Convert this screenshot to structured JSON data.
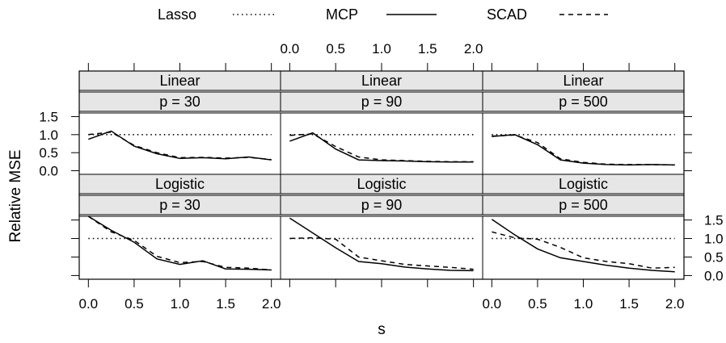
{
  "chart_data": {
    "type": "line",
    "layout": "lattice 3 columns x 2 rows",
    "xlabel": "s",
    "ylabel": "Relative MSE",
    "xlim": [
      -0.1,
      2.1
    ],
    "ylim": [
      -0.1,
      1.6
    ],
    "x_ticks": [
      "0.0",
      "0.5",
      "1.0",
      "1.5",
      "2.0"
    ],
    "y_ticks": [
      "0.0",
      "0.5",
      "1.0",
      "1.5"
    ],
    "legend": {
      "position": "top",
      "entries": [
        {
          "name": "Lasso",
          "style": "dotted"
        },
        {
          "name": "MCP",
          "style": "solid"
        },
        {
          "name": "SCAD",
          "style": "dashed"
        }
      ]
    },
    "panels": [
      {
        "strip": [
          "Linear",
          "p = 30"
        ],
        "x": [
          0,
          0.25,
          0.5,
          0.75,
          1.0,
          1.25,
          1.5,
          1.75,
          2.0
        ],
        "series": [
          {
            "name": "Lasso",
            "values": [
              1,
              1,
              1,
              1,
              1,
              1,
              1,
              1,
              1
            ]
          },
          {
            "name": "MCP",
            "values": [
              0.87,
              1.1,
              0.68,
              0.47,
              0.34,
              0.36,
              0.33,
              0.38,
              0.3
            ]
          },
          {
            "name": "SCAD",
            "values": [
              1.0,
              1.07,
              0.7,
              0.5,
              0.36,
              0.37,
              0.35,
              0.37,
              0.31
            ]
          }
        ]
      },
      {
        "strip": [
          "Linear",
          "p = 90"
        ],
        "x": [
          0,
          0.25,
          0.5,
          0.75,
          1.0,
          1.25,
          1.5,
          1.75,
          2.0
        ],
        "series": [
          {
            "name": "Lasso",
            "values": [
              1,
              1,
              1,
              1,
              1,
              1,
              1,
              1,
              1
            ]
          },
          {
            "name": "MCP",
            "values": [
              0.82,
              1.05,
              0.6,
              0.3,
              0.28,
              0.27,
              0.25,
              0.24,
              0.24
            ]
          },
          {
            "name": "SCAD",
            "values": [
              0.98,
              1.02,
              0.67,
              0.38,
              0.3,
              0.28,
              0.26,
              0.25,
              0.25
            ]
          }
        ]
      },
      {
        "strip": [
          "Linear",
          "p = 500"
        ],
        "x": [
          0,
          0.25,
          0.5,
          0.75,
          1.0,
          1.25,
          1.5,
          1.75,
          2.0
        ],
        "series": [
          {
            "name": "Lasso",
            "values": [
              1,
              1,
              1,
              1,
              1,
              1,
              1,
              1,
              1
            ]
          },
          {
            "name": "MCP",
            "values": [
              0.95,
              1.0,
              0.72,
              0.3,
              0.21,
              0.17,
              0.16,
              0.17,
              0.16
            ]
          },
          {
            "name": "SCAD",
            "values": [
              0.96,
              0.99,
              0.78,
              0.33,
              0.23,
              0.18,
              0.17,
              0.17,
              0.16
            ]
          }
        ]
      },
      {
        "strip": [
          "Logistic",
          "p = 30"
        ],
        "x": [
          0,
          0.25,
          0.5,
          0.75,
          1.0,
          1.25,
          1.5,
          1.75,
          2.0
        ],
        "series": [
          {
            "name": "Lasso",
            "values": [
              1,
              1,
              1,
              1,
              1,
              1,
              1,
              1,
              1
            ]
          },
          {
            "name": "MCP",
            "values": [
              1.6,
              1.22,
              0.9,
              0.45,
              0.3,
              0.4,
              0.18,
              0.17,
              0.15
            ]
          },
          {
            "name": "SCAD",
            "values": [
              1.6,
              1.18,
              0.95,
              0.52,
              0.35,
              0.38,
              0.22,
              0.2,
              0.15
            ]
          }
        ]
      },
      {
        "strip": [
          "Logistic",
          "p = 90"
        ],
        "x": [
          0,
          0.25,
          0.5,
          0.75,
          1.0,
          1.25,
          1.5,
          1.75,
          2.0
        ],
        "series": [
          {
            "name": "Lasso",
            "values": [
              1,
              1,
              1,
              1,
              1,
              1,
              1,
              1,
              1
            ]
          },
          {
            "name": "MCP",
            "values": [
              1.55,
              1.15,
              0.75,
              0.38,
              0.32,
              0.23,
              0.18,
              0.14,
              0.13
            ]
          },
          {
            "name": "SCAD",
            "values": [
              1.0,
              1.02,
              0.98,
              0.5,
              0.4,
              0.3,
              0.26,
              0.22,
              0.17
            ]
          }
        ]
      },
      {
        "strip": [
          "Logistic",
          "p = 500"
        ],
        "x": [
          0,
          0.25,
          0.5,
          0.75,
          1.0,
          1.25,
          1.5,
          1.75,
          2.0
        ],
        "series": [
          {
            "name": "Lasso",
            "values": [
              1,
              1,
              1,
              1,
              1,
              1,
              1,
              1,
              1
            ]
          },
          {
            "name": "MCP",
            "values": [
              1.52,
              1.1,
              0.72,
              0.48,
              0.38,
              0.28,
              0.2,
              0.14,
              0.1
            ]
          },
          {
            "name": "SCAD",
            "values": [
              1.18,
              1.02,
              0.98,
              0.76,
              0.48,
              0.38,
              0.32,
              0.2,
              0.22
            ]
          }
        ]
      }
    ]
  }
}
